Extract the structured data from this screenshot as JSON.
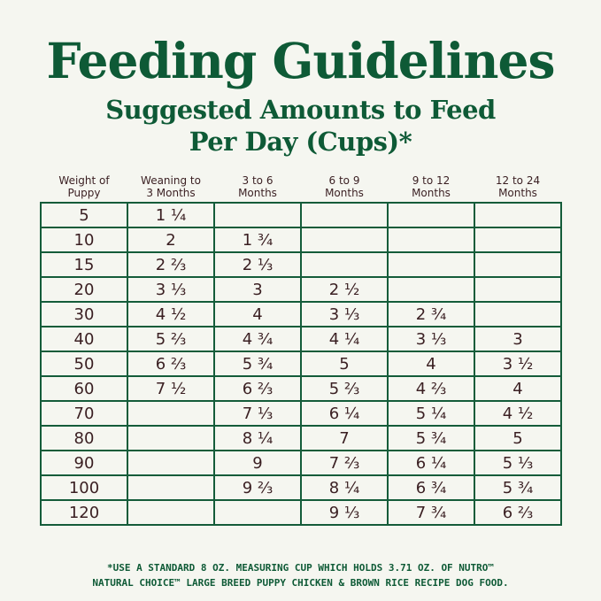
{
  "title": "Feeding Guidelines",
  "subtitle_line1": "Suggested Amounts to Feed",
  "subtitle_line2": "Per Day (Cups)*",
  "table": {
    "headers": [
      [
        "Weight of",
        "Puppy"
      ],
      [
        "Weaning to",
        "3 Months"
      ],
      [
        "3 to 6",
        "Months"
      ],
      [
        "6 to 9",
        "Months"
      ],
      [
        "9 to 12",
        "Months"
      ],
      [
        "12 to 24",
        "Months"
      ]
    ],
    "rows": [
      [
        "5",
        "1 ¼",
        "",
        "",
        "",
        ""
      ],
      [
        "10",
        "2",
        "1 ¾",
        "",
        "",
        ""
      ],
      [
        "15",
        "2 ⅔",
        "2 ⅓",
        "",
        "",
        ""
      ],
      [
        "20",
        "3 ⅓",
        "3",
        "2 ½",
        "",
        ""
      ],
      [
        "30",
        "4 ½",
        "4",
        "3 ⅓",
        "2 ¾",
        ""
      ],
      [
        "40",
        "5 ⅔",
        "4 ¾",
        "4 ¼",
        "3 ⅓",
        "3"
      ],
      [
        "50",
        "6 ⅔",
        "5 ¾",
        "5",
        "4",
        "3 ½"
      ],
      [
        "60",
        "7 ½",
        "6 ⅔",
        "5 ⅔",
        "4 ⅔",
        "4"
      ],
      [
        "70",
        "",
        "7 ⅓",
        "6 ¼",
        "5 ¼",
        "4 ½"
      ],
      [
        "80",
        "",
        "8 ¼",
        "7",
        "5 ¾",
        "5"
      ],
      [
        "90",
        "",
        "9",
        "7 ⅔",
        "6 ¼",
        "5 ⅓"
      ],
      [
        "100",
        "",
        "9 ⅔",
        "8 ¼",
        "6 ¾",
        "5 ¾"
      ],
      [
        "120",
        "",
        "",
        "9 ⅓",
        "7 ¾",
        "6 ⅔"
      ]
    ]
  },
  "footnote_line1": "*USE A STANDARD 8 OZ. MEASURING CUP WHICH HOLDS 3.71 OZ. OF NUTRO™",
  "footnote_line2": "NATURAL CHOICE™ LARGE BREED PUPPY CHICKEN & BROWN RICE RECIPE DOG FOOD.",
  "colors": {
    "brand_green": "#0e5a36",
    "text_brown": "#3a1f22",
    "background": "#f5f6f0"
  }
}
